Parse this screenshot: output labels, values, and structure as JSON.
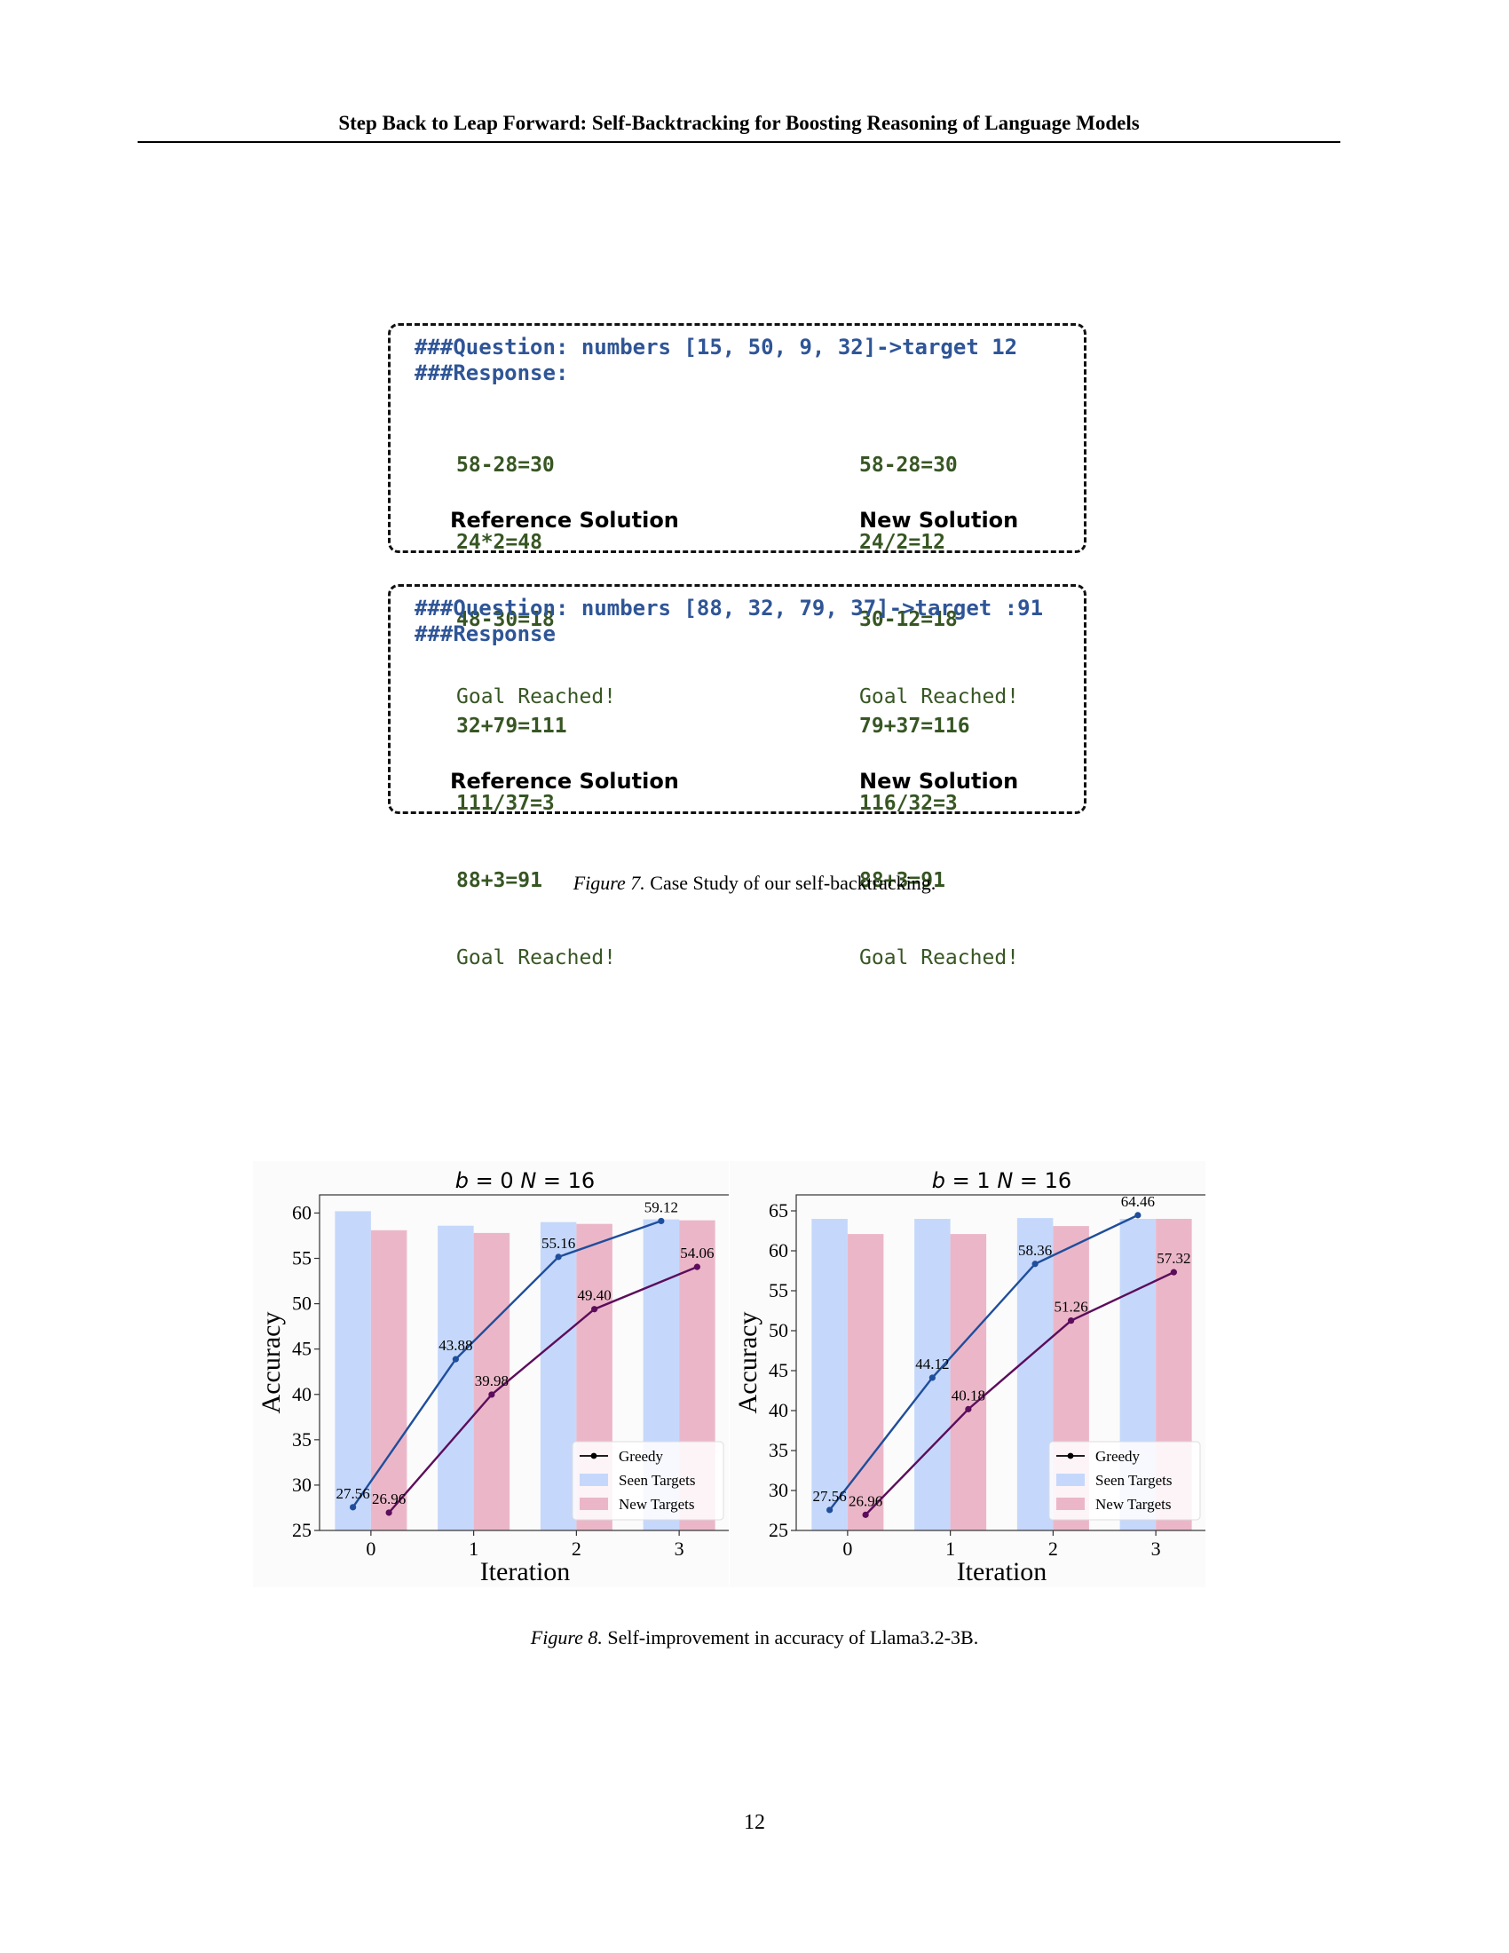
{
  "header": {
    "title": "Step Back to Leap Forward: Self-Backtracking for Boosting Reasoning of Language Models"
  },
  "case_study": {
    "examples": [
      {
        "question": "###Question: numbers [15, 50, 9, 32]->target 12",
        "response_label": "###Response:",
        "reference": {
          "steps": [
            "58-28=30",
            "24*2=48",
            "48-30=18"
          ],
          "goal": "Goal Reached!",
          "label": "Reference Solution"
        },
        "new": {
          "steps": [
            "58-28=30",
            "24/2=12",
            "30-12=18"
          ],
          "goal": "Goal Reached!",
          "label": "New Solution"
        }
      },
      {
        "question": "###Question: numbers [88, 32, 79, 37]->target :91",
        "response_label": "###Response",
        "reference": {
          "steps": [
            "32+79=111",
            "111/37=3",
            "88+3=91"
          ],
          "goal": "Goal Reached!",
          "label": "Reference Solution"
        },
        "new": {
          "steps": [
            "79+37=116",
            "116/32=3",
            "88+3=91"
          ],
          "goal": "Goal Reached!",
          "label": "New Solution"
        }
      }
    ]
  },
  "figure7_caption": {
    "label": "Figure 7.",
    "text": "Case Study of our self-backtracking."
  },
  "chart_data": [
    {
      "type": "bar",
      "title": "b = 0 N = 16",
      "xlabel": "Iteration",
      "ylabel": "Accuracy",
      "categories": [
        "0",
        "1",
        "2",
        "3"
      ],
      "ylim": [
        25,
        62
      ],
      "yticks": [
        25,
        30,
        35,
        40,
        45,
        50,
        55,
        60
      ],
      "series": [
        {
          "name": "Seen Targets",
          "kind": "bar",
          "color": "#c5d8fb",
          "values": [
            60.2,
            58.6,
            59.0,
            59.3
          ]
        },
        {
          "name": "New Targets",
          "kind": "bar",
          "color": "#ebb7c8",
          "values": [
            58.1,
            57.8,
            58.8,
            59.2
          ]
        },
        {
          "name": "Greedy (Seen)",
          "kind": "line",
          "color": "#1f4e9c",
          "values": [
            27.56,
            43.88,
            55.16,
            59.12
          ],
          "labels": [
            "27.56",
            "43.88",
            "55.16",
            "59.12"
          ]
        },
        {
          "name": "Greedy (New)",
          "kind": "line",
          "color": "#5c0d5c",
          "values": [
            26.96,
            39.98,
            49.4,
            54.06
          ],
          "labels": [
            "26.96",
            "39.98",
            "49.40",
            "54.06"
          ]
        }
      ],
      "legend": {
        "entries": [
          "Greedy",
          "Seen Targets",
          "New Targets"
        ],
        "position": "lower-right"
      }
    },
    {
      "type": "bar",
      "title": "b = 1 N = 16",
      "xlabel": "Iteration",
      "ylabel": "Accuracy",
      "categories": [
        "0",
        "1",
        "2",
        "3"
      ],
      "ylim": [
        25,
        67
      ],
      "yticks": [
        25,
        30,
        35,
        40,
        45,
        50,
        55,
        60,
        65
      ],
      "series": [
        {
          "name": "Seen Targets",
          "kind": "bar",
          "color": "#c5d8fb",
          "values": [
            64.0,
            64.0,
            64.1,
            64.0
          ]
        },
        {
          "name": "New Targets",
          "kind": "bar",
          "color": "#ebb7c8",
          "values": [
            62.1,
            62.1,
            63.1,
            64.0
          ]
        },
        {
          "name": "Greedy (Seen)",
          "kind": "line",
          "color": "#1f4e9c",
          "values": [
            27.56,
            44.12,
            58.36,
            64.46
          ],
          "labels": [
            "27.56",
            "44.12",
            "58.36",
            "64.46"
          ]
        },
        {
          "name": "Greedy (New)",
          "kind": "line",
          "color": "#5c0d5c",
          "values": [
            26.96,
            40.18,
            51.26,
            57.32
          ],
          "labels": [
            "26.96",
            "40.18",
            "51.26",
            "57.32"
          ]
        }
      ],
      "legend": {
        "entries": [
          "Greedy",
          "Seen Targets",
          "New Targets"
        ],
        "position": "lower-right"
      }
    }
  ],
  "figure8_caption": {
    "label": "Figure 8.",
    "text": "Self-improvement in accuracy of Llama3.2-3B."
  },
  "page_number": "12"
}
